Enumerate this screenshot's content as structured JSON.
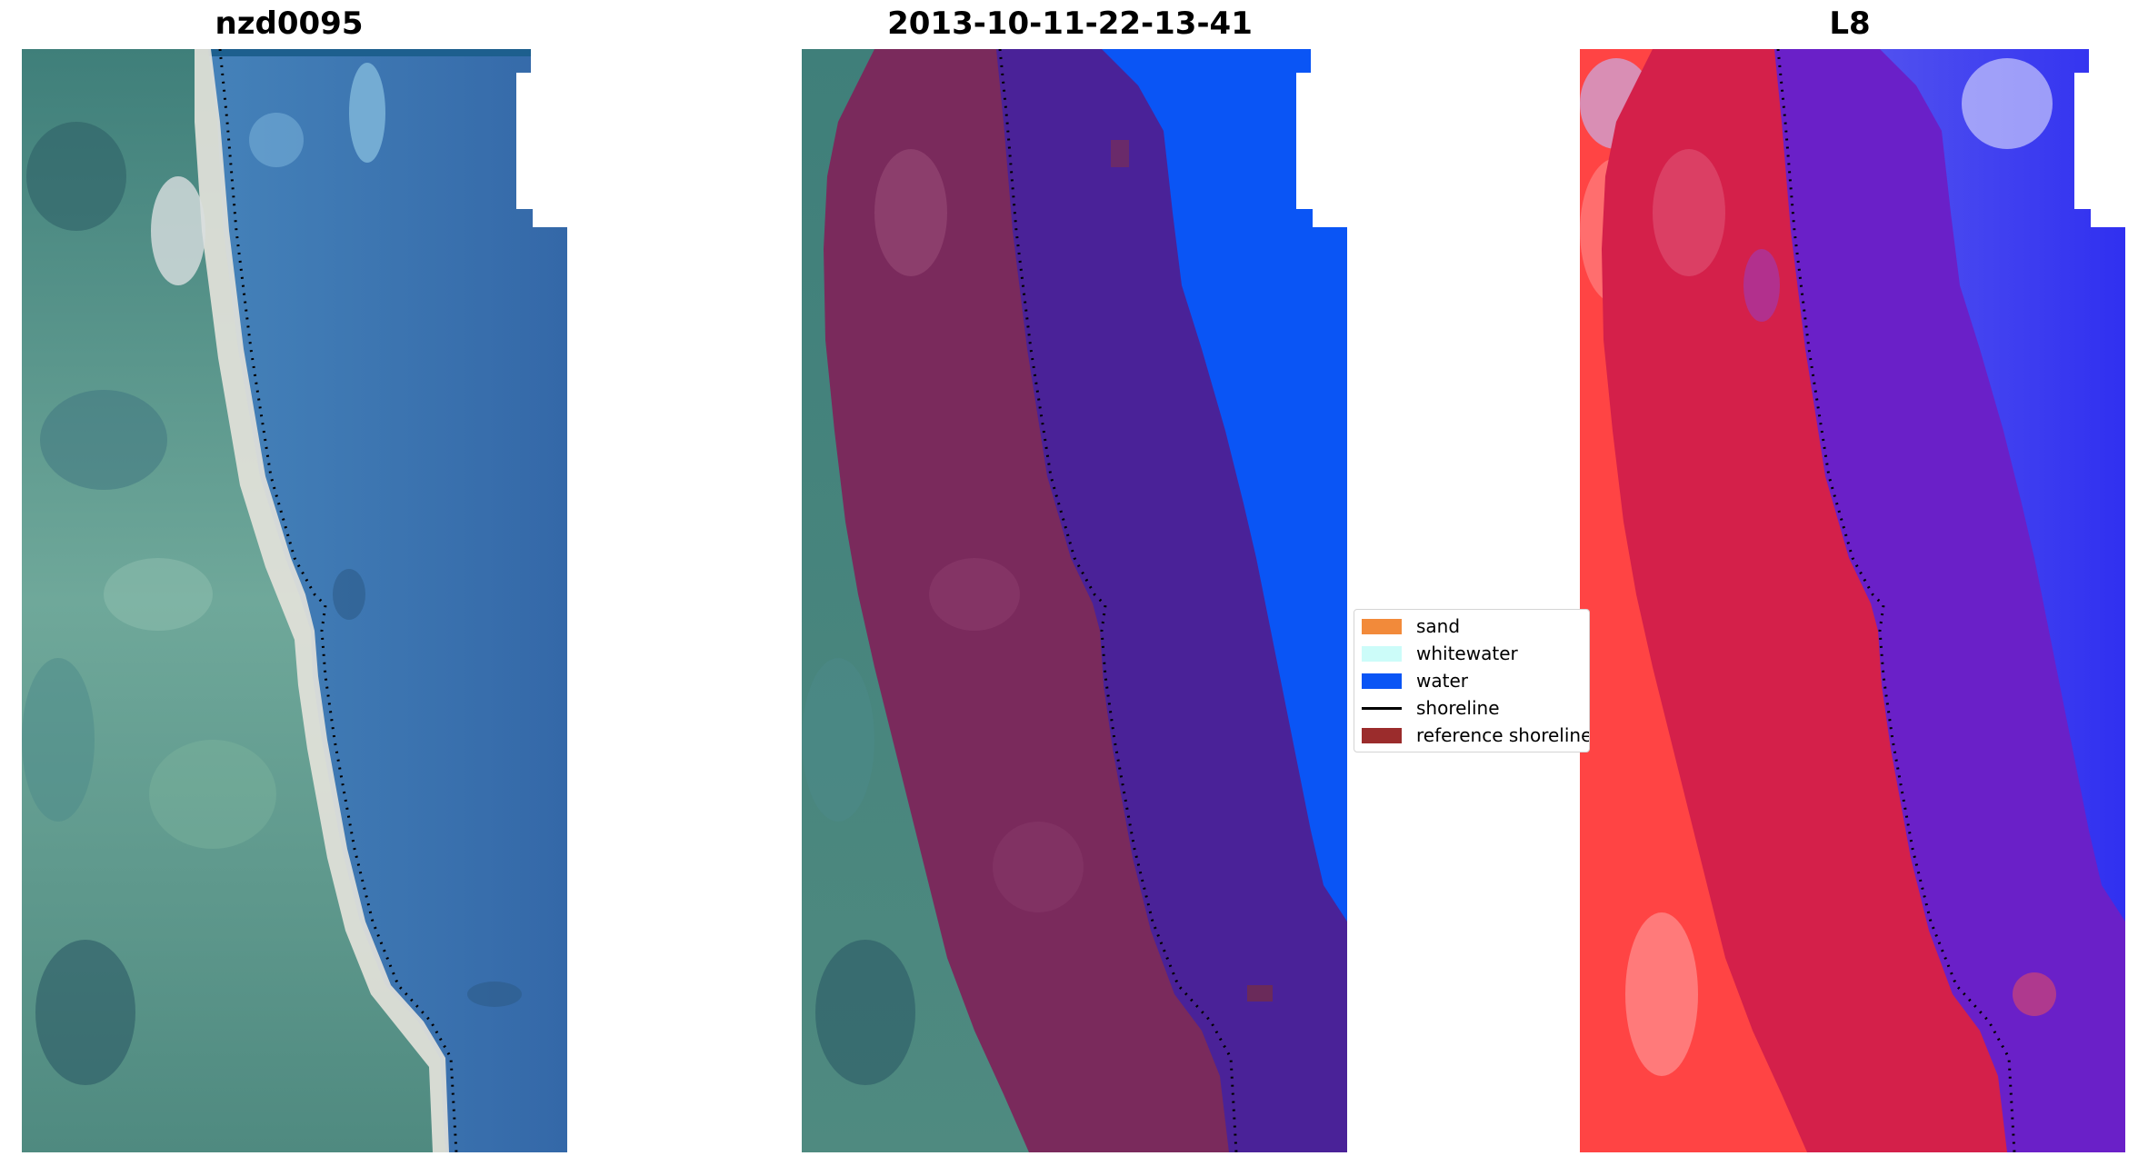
{
  "panels": [
    {
      "title": "nzd0095"
    },
    {
      "title": "2013-10-11-22-13-41"
    },
    {
      "title": "L8"
    }
  ],
  "legend": {
    "items": [
      {
        "label": "sand",
        "color": "#f28a3a",
        "kind": "patch"
      },
      {
        "label": "whitewater",
        "color": "#ccfcf9",
        "kind": "patch"
      },
      {
        "label": "water",
        "color": "#0a55f5",
        "kind": "patch"
      },
      {
        "label": "shoreline",
        "color": "#000000",
        "kind": "line"
      },
      {
        "label": "reference shoreline",
        "color": "#9b2c2c",
        "kind": "patch"
      }
    ]
  },
  "colors": {
    "ocean_rgb": "#3a78b0",
    "land_rgb": "#5c9a92",
    "beach_sand": "#e8e4dc",
    "classified_water": "#0a55f5",
    "buffer_land": "#7a2a5c",
    "buffer_water": "#4a2298",
    "index_land": "#ff4444",
    "index_water": "#6464f0"
  }
}
